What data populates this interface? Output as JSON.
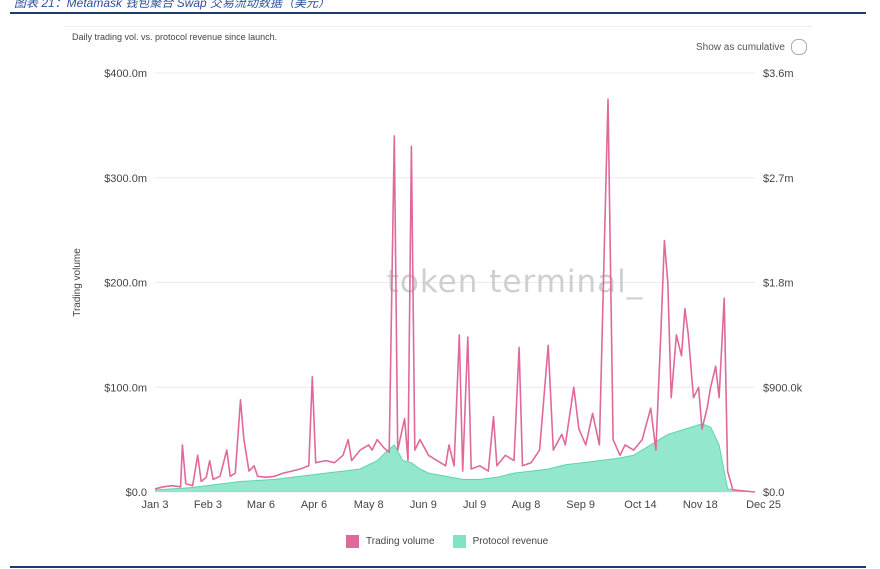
{
  "page_header": "图表 21：Metamask 钱包聚合 Swap 交易流动数据（美元）",
  "chart_data": {
    "type": "line+area",
    "title": "Daily trading vol. vs. protocol revenue since launch.",
    "toggle_label": "Show as cumulative",
    "ylabel": "Trading volume",
    "left_axis": {
      "min": 0,
      "max": 400,
      "unit": "$m",
      "ticks": [
        "$0.0",
        "$100.0m",
        "$200.0m",
        "$300.0m",
        "$400.0m"
      ]
    },
    "right_axis": {
      "min": 0,
      "max": 3600,
      "unit": "$k",
      "ticks": [
        "$0.0",
        "$900.0k",
        "$1.8m",
        "$2.7m",
        "$3.6m"
      ]
    },
    "x_range": [
      0,
      351
    ],
    "x_ticks": [
      {
        "label": "Jan 3",
        "day": 0
      },
      {
        "label": "Feb 3",
        "day": 31
      },
      {
        "label": "Mar 6",
        "day": 62
      },
      {
        "label": "Apr 6",
        "day": 93
      },
      {
        "label": "May 8",
        "day": 125
      },
      {
        "label": "Jun 9",
        "day": 157
      },
      {
        "label": "Jul 9",
        "day": 187
      },
      {
        "label": "Aug 8",
        "day": 217
      },
      {
        "label": "Sep 9",
        "day": 249
      },
      {
        "label": "Oct 14",
        "day": 284
      },
      {
        "label": "Nov 18",
        "day": 319
      },
      {
        "label": "Dec 25",
        "day": 356
      }
    ],
    "watermark": "token terminal_",
    "legend": [
      {
        "name": "Trading volume",
        "color": "#e0699c"
      },
      {
        "name": "Protocol revenue",
        "color": "#7fe3c4"
      }
    ],
    "series": [
      {
        "name": "Trading volume",
        "color": "#e0699c",
        "unit": "$m",
        "points": [
          [
            0,
            3
          ],
          [
            5,
            5
          ],
          [
            10,
            6
          ],
          [
            15,
            5
          ],
          [
            16,
            45
          ],
          [
            18,
            8
          ],
          [
            22,
            6
          ],
          [
            25,
            35
          ],
          [
            27,
            10
          ],
          [
            30,
            14
          ],
          [
            32,
            30
          ],
          [
            34,
            12
          ],
          [
            38,
            15
          ],
          [
            42,
            40
          ],
          [
            44,
            15
          ],
          [
            47,
            18
          ],
          [
            50,
            88
          ],
          [
            52,
            50
          ],
          [
            55,
            20
          ],
          [
            58,
            25
          ],
          [
            60,
            15
          ],
          [
            65,
            14
          ],
          [
            70,
            15
          ],
          [
            75,
            18
          ],
          [
            80,
            20
          ],
          [
            85,
            22
          ],
          [
            90,
            25
          ],
          [
            92,
            110
          ],
          [
            94,
            28
          ],
          [
            100,
            30
          ],
          [
            105,
            28
          ],
          [
            110,
            35
          ],
          [
            113,
            50
          ],
          [
            115,
            30
          ],
          [
            120,
            40
          ],
          [
            125,
            45
          ],
          [
            127,
            40
          ],
          [
            130,
            50
          ],
          [
            134,
            42
          ],
          [
            137,
            38
          ],
          [
            140,
            340
          ],
          [
            142,
            40
          ],
          [
            146,
            70
          ],
          [
            148,
            30
          ],
          [
            150,
            330
          ],
          [
            152,
            40
          ],
          [
            155,
            50
          ],
          [
            160,
            35
          ],
          [
            165,
            30
          ],
          [
            170,
            25
          ],
          [
            172,
            45
          ],
          [
            175,
            25
          ],
          [
            178,
            150
          ],
          [
            180,
            20
          ],
          [
            183,
            148
          ],
          [
            185,
            22
          ],
          [
            190,
            25
          ],
          [
            195,
            20
          ],
          [
            198,
            72
          ],
          [
            200,
            25
          ],
          [
            205,
            35
          ],
          [
            210,
            30
          ],
          [
            213,
            138
          ],
          [
            215,
            25
          ],
          [
            220,
            28
          ],
          [
            225,
            40
          ],
          [
            230,
            140
          ],
          [
            233,
            40
          ],
          [
            238,
            55
          ],
          [
            240,
            45
          ],
          [
            245,
            100
          ],
          [
            248,
            60
          ],
          [
            252,
            45
          ],
          [
            256,
            75
          ],
          [
            260,
            45
          ],
          [
            265,
            375
          ],
          [
            268,
            50
          ],
          [
            272,
            35
          ],
          [
            275,
            45
          ],
          [
            280,
            40
          ],
          [
            285,
            50
          ],
          [
            290,
            80
          ],
          [
            293,
            40
          ],
          [
            296,
            155
          ],
          [
            298,
            240
          ],
          [
            300,
            200
          ],
          [
            302,
            90
          ],
          [
            305,
            150
          ],
          [
            308,
            130
          ],
          [
            310,
            175
          ],
          [
            312,
            150
          ],
          [
            315,
            90
          ],
          [
            318,
            100
          ],
          [
            320,
            60
          ],
          [
            323,
            80
          ],
          [
            325,
            100
          ],
          [
            328,
            120
          ],
          [
            330,
            90
          ],
          [
            333,
            185
          ],
          [
            335,
            20
          ],
          [
            338,
            2
          ],
          [
            345,
            1
          ],
          [
            351,
            0
          ]
        ]
      },
      {
        "name": "Protocol revenue",
        "color": "#7fe3c4",
        "unit": "$m (left-scale equivalent)",
        "points": [
          [
            0,
            2
          ],
          [
            10,
            3
          ],
          [
            20,
            4
          ],
          [
            30,
            6
          ],
          [
            40,
            8
          ],
          [
            50,
            10
          ],
          [
            60,
            11
          ],
          [
            70,
            12
          ],
          [
            80,
            14
          ],
          [
            90,
            16
          ],
          [
            100,
            18
          ],
          [
            110,
            20
          ],
          [
            120,
            22
          ],
          [
            130,
            30
          ],
          [
            135,
            38
          ],
          [
            140,
            45
          ],
          [
            145,
            30
          ],
          [
            150,
            28
          ],
          [
            155,
            22
          ],
          [
            160,
            18
          ],
          [
            170,
            15
          ],
          [
            180,
            12
          ],
          [
            190,
            12
          ],
          [
            200,
            14
          ],
          [
            210,
            18
          ],
          [
            220,
            20
          ],
          [
            230,
            22
          ],
          [
            240,
            26
          ],
          [
            250,
            28
          ],
          [
            260,
            30
          ],
          [
            270,
            32
          ],
          [
            280,
            35
          ],
          [
            290,
            45
          ],
          [
            295,
            50
          ],
          [
            300,
            55
          ],
          [
            310,
            60
          ],
          [
            320,
            65
          ],
          [
            325,
            62
          ],
          [
            330,
            45
          ],
          [
            333,
            20
          ],
          [
            335,
            3
          ],
          [
            345,
            1
          ],
          [
            351,
            0
          ]
        ]
      }
    ]
  }
}
